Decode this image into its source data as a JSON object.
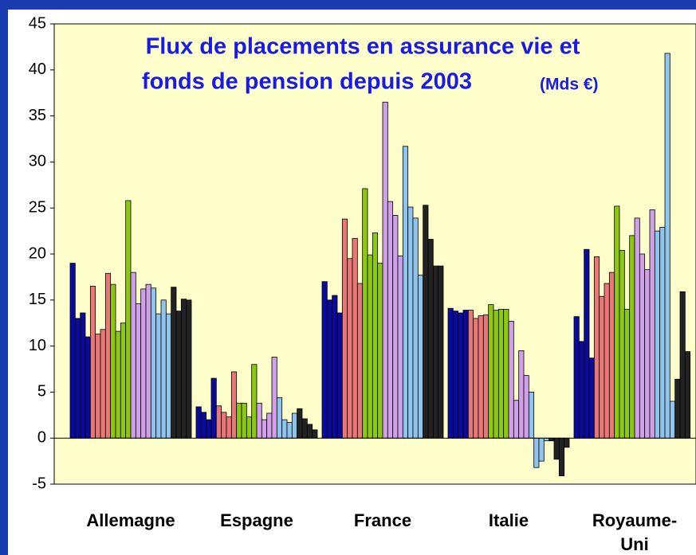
{
  "chart_data": {
    "type": "bar",
    "title_lines": [
      "Flux de placements en assurance vie et",
      "fonds de pension depuis 2003"
    ],
    "unit": "(Mds €)",
    "categories": [
      "Allemagne",
      "Espagne",
      "France",
      "Italie",
      "Royaume-Uni"
    ],
    "ylim": [
      -5,
      45
    ],
    "yticks": [
      -5,
      0,
      5,
      10,
      15,
      20,
      25,
      30,
      35,
      40,
      45
    ],
    "series": [
      {
        "color": "#0a0a9c",
        "values": [
          19,
          3.4,
          17,
          14.1,
          13.2
        ]
      },
      {
        "color": "#0a0a9c",
        "values": [
          13,
          2.8,
          15,
          13.8,
          10.5
        ]
      },
      {
        "color": "#0a0a9c",
        "values": [
          13.6,
          2,
          15.5,
          13.6,
          20.5
        ]
      },
      {
        "color": "#0a0a9c",
        "values": [
          11,
          6.5,
          13.6,
          13.9,
          8.7
        ]
      },
      {
        "color": "#e87878",
        "values": [
          16.5,
          3.5,
          23.8,
          13.9,
          19.7
        ]
      },
      {
        "color": "#e87878",
        "values": [
          11.3,
          2.8,
          19.5,
          13,
          15.4
        ]
      },
      {
        "color": "#e87878",
        "values": [
          11.8,
          2.3,
          21.7,
          13.3,
          16.8
        ]
      },
      {
        "color": "#e87878",
        "values": [
          17.9,
          7.2,
          16.8,
          13.4,
          18
        ]
      },
      {
        "color": "#8cc814",
        "values": [
          16.7,
          3.8,
          27.1,
          14.5,
          25.2
        ]
      },
      {
        "color": "#8cc814",
        "values": [
          11.6,
          3.8,
          19.9,
          13.9,
          20.4
        ]
      },
      {
        "color": "#8cc814",
        "values": [
          12.5,
          2.3,
          22.3,
          14,
          14
        ]
      },
      {
        "color": "#8cc814",
        "values": [
          25.8,
          8,
          19,
          14,
          22
        ]
      },
      {
        "color": "#d0a0e8",
        "values": [
          18,
          3.8,
          36.5,
          12.7,
          23.9
        ]
      },
      {
        "color": "#d0a0e8",
        "values": [
          14.6,
          2,
          25.7,
          4.1,
          20
        ]
      },
      {
        "color": "#d0a0e8",
        "values": [
          16.2,
          2.7,
          24.2,
          9.5,
          18.3
        ]
      },
      {
        "color": "#d0a0e8",
        "values": [
          16.7,
          8.8,
          19.8,
          6.8,
          24.8
        ]
      },
      {
        "color": "#90c4ec",
        "values": [
          16.3,
          4.4,
          31.7,
          5,
          22.5
        ]
      },
      {
        "color": "#90c4ec",
        "values": [
          13.5,
          2,
          25.1,
          -3.2,
          22.9
        ]
      },
      {
        "color": "#90c4ec",
        "values": [
          15,
          1.7,
          23.9,
          -2.5,
          41.8
        ]
      },
      {
        "color": "#90c4ec",
        "values": [
          13.5,
          2.7,
          17.7,
          -0.3,
          4
        ]
      },
      {
        "color": "#222222",
        "values": [
          16.4,
          3.2,
          25.3,
          -0.3,
          6.4
        ]
      },
      {
        "color": "#222222",
        "values": [
          13.8,
          2.1,
          21.6,
          -2.3,
          15.9
        ]
      },
      {
        "color": "#222222",
        "values": [
          15.1,
          1.5,
          18.7,
          -4.1,
          9.4
        ]
      },
      {
        "color": "#222222",
        "values": [
          15,
          0.9,
          18.7,
          -1,
          null
        ]
      }
    ]
  }
}
